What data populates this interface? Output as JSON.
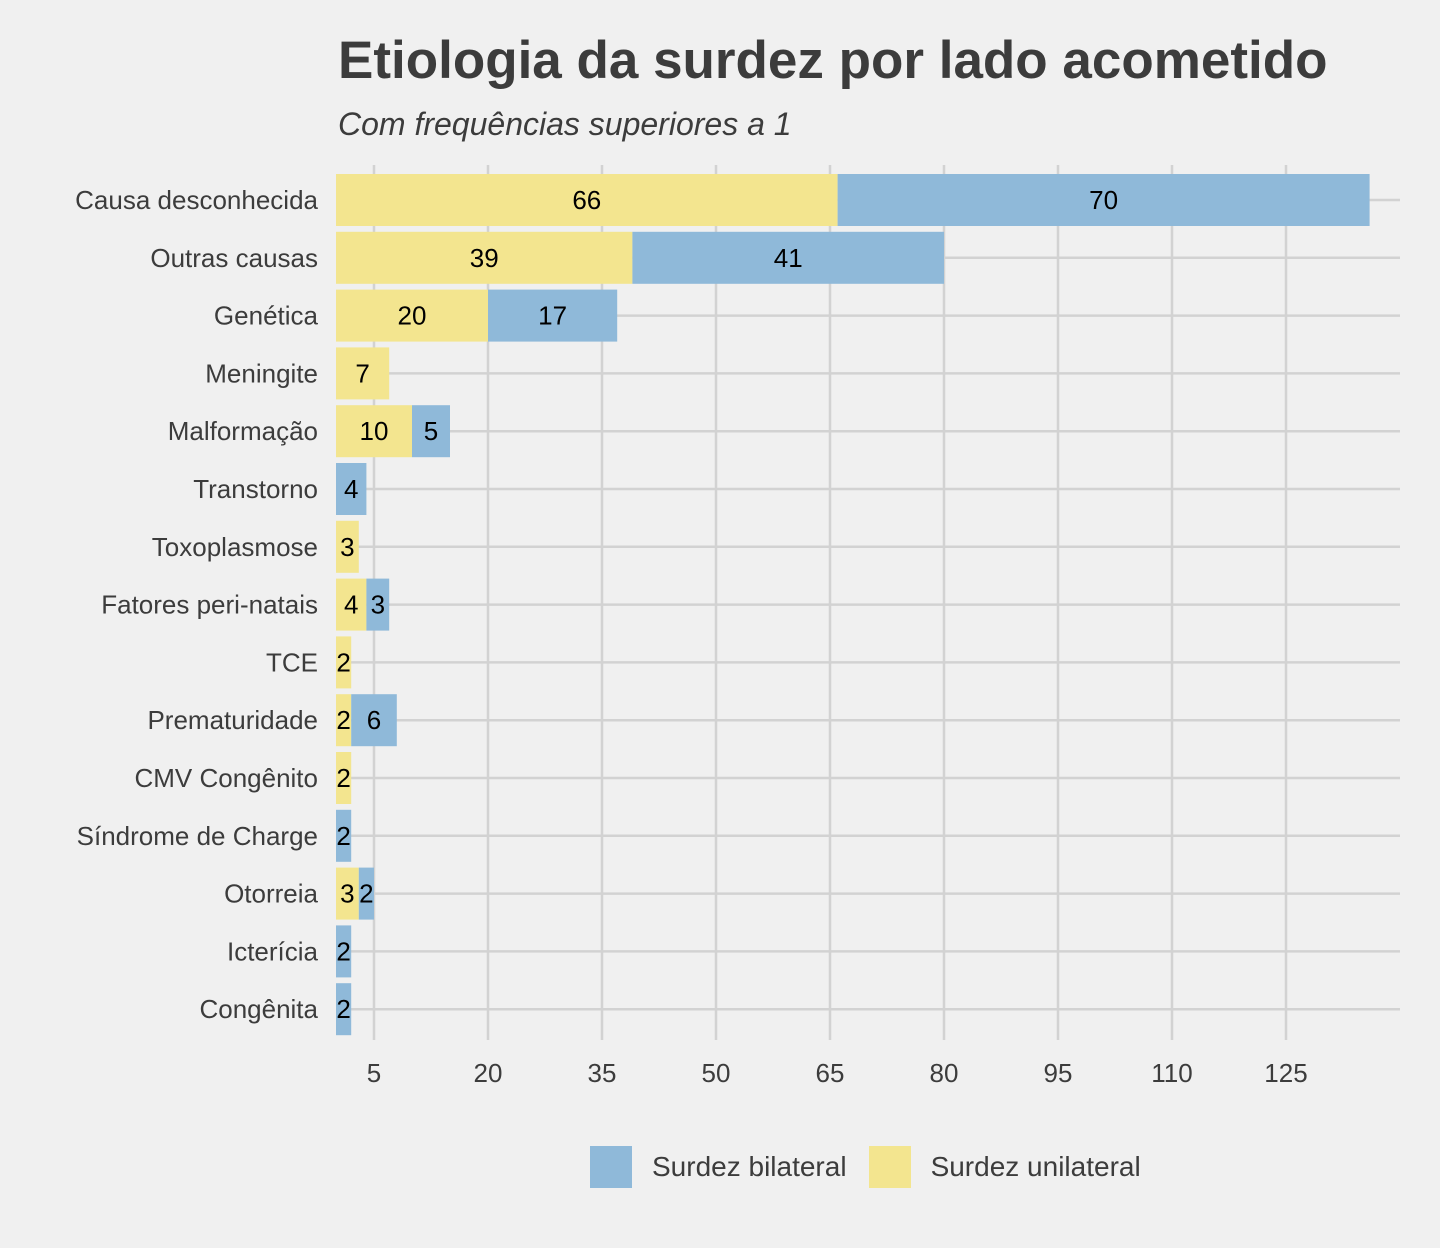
{
  "chart_data": {
    "type": "bar",
    "orientation": "horizontal",
    "stacked": true,
    "title": "Etiologia da surdez por lado acometido",
    "subtitle": "Com frequências superiores a 1",
    "xlabel": "",
    "ylabel": "",
    "x_ticks": [
      "5",
      "20",
      "35",
      "50",
      "65",
      "80",
      "95",
      "110",
      "125"
    ],
    "xlim": [
      0,
      140
    ],
    "grid": true,
    "legend_position": "bottom",
    "categories": [
      "Causa desconhecida",
      "Outras causas",
      "Genética",
      "Meningite",
      "Malformação",
      "Transtorno",
      "Toxoplasmose",
      "Fatores peri-natais",
      "TCE",
      "Prematuridade",
      "CMV Congênito",
      "Síndrome de Charge",
      "Otorreia",
      "Icterícia",
      "Congênita"
    ],
    "series": [
      {
        "name": "Surdez unilateral",
        "color": "#f3e58f",
        "values": [
          66,
          39,
          20,
          7,
          10,
          0,
          3,
          4,
          2,
          2,
          2,
          0,
          3,
          0,
          0
        ]
      },
      {
        "name": "Surdez bilateral",
        "color": "#8fb9d9",
        "values": [
          70,
          41,
          17,
          0,
          5,
          4,
          0,
          3,
          0,
          6,
          0,
          2,
          2,
          2,
          2
        ]
      }
    ]
  },
  "legend": {
    "items": [
      {
        "label": "Surdez bilateral",
        "color": "#8fb9d9"
      },
      {
        "label": "Surdez unilateral",
        "color": "#f3e58f"
      }
    ]
  }
}
